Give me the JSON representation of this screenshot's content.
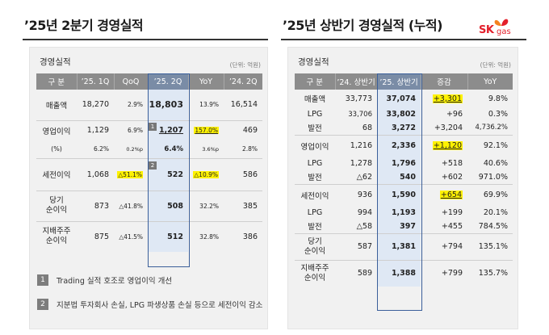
{
  "left": {
    "title": "’25년 2분기 경영실적",
    "box_label": "경영실적",
    "unit": "(단위: 억원)",
    "headers": [
      "구 분",
      "’25. 1Q",
      "QoQ",
      "’25. 2Q",
      "YoY",
      "’24. 2Q"
    ],
    "rows": [
      {
        "label": "매출액",
        "q1": "18,270",
        "qoq": "2.9%",
        "q2": "18,803",
        "yoy": "13.9%",
        "prev": "16,514"
      },
      {
        "label": "영업이익",
        "q1": "1,129",
        "qoq": "6.9%",
        "q2": "1,207",
        "yoy": "157.0%",
        "prev": "469",
        "badge": "1"
      },
      {
        "label": "(%)",
        "q1": "6.2%",
        "qoq": "0.2%p",
        "q2": "6.4%",
        "yoy": "3.6%p",
        "prev": "2.8%"
      },
      {
        "label": "세전이익",
        "q1": "1,068",
        "qoq": "△51.1%",
        "q2": "522",
        "yoy": "△10.9%",
        "prev": "586",
        "badge": "2"
      },
      {
        "label1": "당기",
        "label2": "순이익",
        "q1": "873",
        "qoq": "△41.8%",
        "q2": "508",
        "yoy": "32.2%",
        "prev": "385"
      },
      {
        "label1": "지배주주",
        "label2": "순이익",
        "q1": "875",
        "qoq": "△41.5%",
        "q2": "512",
        "yoy": "32.8%",
        "prev": "386"
      }
    ],
    "notes": [
      {
        "num": "1",
        "text": "Trading 실적 호조로 영업이익 개선"
      },
      {
        "num": "2",
        "text": "지분법 투자회사 손실, LPG 파생상품 손실 등으로 세전이익 감소"
      }
    ]
  },
  "right": {
    "title": "’25년 상반기 경영실적 (누적)",
    "box_label": "경영실적",
    "unit": "(단위: 억원)",
    "headers": [
      "구 분",
      "’24. 상반기",
      "’25. 상반기",
      "증감",
      "YoY"
    ],
    "rows": [
      {
        "label": "매출액",
        "h24": "33,773",
        "h25": "37,074",
        "diff": "+3,301",
        "yoy": "9.8%"
      },
      {
        "label": "LPG",
        "h24": "33,706",
        "h25": "33,802",
        "diff": "+96",
        "yoy": "0.3%"
      },
      {
        "label": "발전",
        "h24": "68",
        "h25": "3,272",
        "diff": "+3,204",
        "yoy": "4,736.2%"
      },
      {
        "label": "영업이익",
        "h24": "1,216",
        "h25": "2,336",
        "diff": "+1,120",
        "yoy": "92.1%"
      },
      {
        "label": "LPG",
        "h24": "1,278",
        "h25": "1,796",
        "diff": "+518",
        "yoy": "40.6%"
      },
      {
        "label": "발전",
        "h24": "△62",
        "h25": "540",
        "diff": "+602",
        "yoy": "971.0%"
      },
      {
        "label": "세전이익",
        "h24": "936",
        "h25": "1,590",
        "diff": "+654",
        "yoy": "69.9%"
      },
      {
        "label": "LPG",
        "h24": "994",
        "h25": "1,193",
        "diff": "+199",
        "yoy": "20.1%"
      },
      {
        "label": "발전",
        "h24": "△58",
        "h25": "397",
        "diff": "+455",
        "yoy": "784.5%"
      },
      {
        "label1": "당기",
        "label2": "순이익",
        "h24": "587",
        "h25": "1,381",
        "diff": "+794",
        "yoy": "135.1%"
      },
      {
        "label1": "지배주주",
        "label2": "순이익",
        "h24": "589",
        "h25": "1,388",
        "diff": "+799",
        "yoy": "135.7%"
      }
    ]
  },
  "logo": {
    "brand": "SK",
    "sub": "gas",
    "color": "#e3202b"
  },
  "colors": {
    "header_gray": "#8c8c8c",
    "highlight": "#fff200",
    "blue_column": "#dfe8f4",
    "blue_border": "#3b5f9a"
  }
}
